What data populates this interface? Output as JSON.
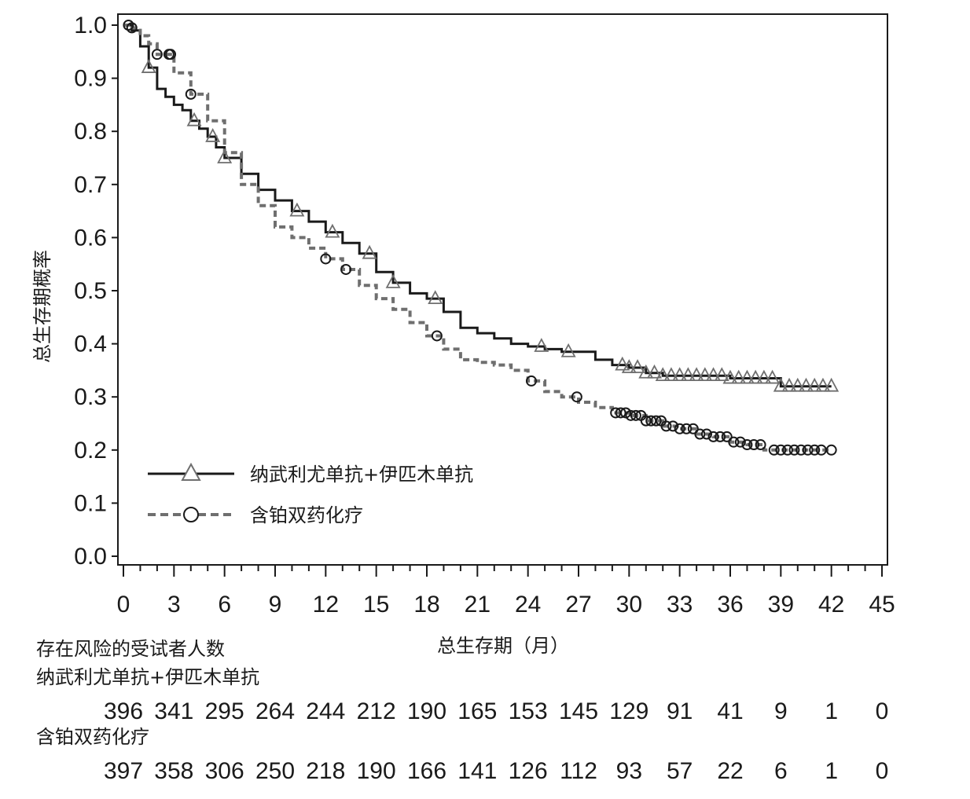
{
  "chart_data": {
    "type": "line",
    "subtype": "kaplan-meier",
    "xlabel": "总生存期（月）",
    "ylabel": "总生存期概率",
    "xlim": [
      0,
      45
    ],
    "ylim": [
      0.0,
      1.0
    ],
    "xticks": [
      "0",
      "3",
      "6",
      "9",
      "12",
      "15",
      "18",
      "21",
      "24",
      "27",
      "30",
      "33",
      "36",
      "39",
      "42",
      "45"
    ],
    "yticks": [
      "0.0",
      "0.1",
      "0.2",
      "0.3",
      "0.4",
      "0.5",
      "0.6",
      "0.7",
      "0.8",
      "0.9",
      "1.0"
    ],
    "grid": false,
    "legend_position": "lower-left",
    "series": [
      {
        "name": "纳武利尤单抗+伊匹木单抗",
        "color": "#1a1a1a",
        "line_style": "solid",
        "marker": "triangle",
        "x": [
          0,
          0.5,
          1,
          1.5,
          2,
          2.5,
          3,
          3.5,
          4,
          4.5,
          5,
          5.5,
          6,
          7,
          8,
          9,
          10,
          11,
          12,
          13,
          14,
          15,
          16,
          17,
          18,
          19,
          20,
          21,
          22,
          23,
          24,
          25,
          26,
          27,
          28,
          29,
          30,
          31,
          32,
          33,
          34,
          35,
          36,
          37,
          38,
          39,
          40,
          41,
          42
        ],
        "y": [
          1.0,
          0.99,
          0.96,
          0.92,
          0.88,
          0.865,
          0.85,
          0.84,
          0.82,
          0.805,
          0.79,
          0.77,
          0.75,
          0.72,
          0.69,
          0.67,
          0.65,
          0.63,
          0.61,
          0.59,
          0.57,
          0.535,
          0.515,
          0.495,
          0.485,
          0.46,
          0.43,
          0.42,
          0.41,
          0.4,
          0.395,
          0.39,
          0.385,
          0.385,
          0.37,
          0.36,
          0.355,
          0.345,
          0.34,
          0.34,
          0.34,
          0.34,
          0.335,
          0.335,
          0.335,
          0.32,
          0.32,
          0.32,
          0.32
        ],
        "censor_x": [
          1.5,
          4.2,
          5.3,
          6,
          10.3,
          12.4,
          14.6,
          16,
          18.5,
          24.8,
          26.4,
          29.6,
          30,
          30.5,
          31,
          31.5,
          32,
          32.5,
          33,
          33.5,
          34,
          34.5,
          35,
          35.5,
          36,
          36.5,
          37,
          37.5,
          38,
          38.5,
          39,
          39.5,
          40,
          40.5,
          41,
          41.5,
          42
        ]
      },
      {
        "name": "含铂双药化疗",
        "color": "#6f6f6f",
        "line_style": "dashed",
        "marker": "circle",
        "x": [
          0,
          0.5,
          1,
          1.5,
          2,
          3,
          4,
          5,
          6,
          7,
          8,
          9,
          10,
          11,
          12,
          13,
          14,
          15,
          16,
          17,
          18,
          19,
          20,
          21,
          22,
          23,
          24,
          25,
          26,
          27,
          28,
          29,
          30,
          31,
          32,
          33,
          34,
          35,
          36,
          37,
          38,
          39,
          40,
          41,
          42
        ],
        "y": [
          1.0,
          0.995,
          0.98,
          0.965,
          0.945,
          0.91,
          0.87,
          0.82,
          0.76,
          0.7,
          0.66,
          0.62,
          0.6,
          0.58,
          0.56,
          0.54,
          0.51,
          0.485,
          0.465,
          0.44,
          0.415,
          0.39,
          0.37,
          0.365,
          0.36,
          0.35,
          0.33,
          0.31,
          0.3,
          0.29,
          0.28,
          0.27,
          0.265,
          0.255,
          0.245,
          0.24,
          0.23,
          0.225,
          0.215,
          0.21,
          0.2,
          0.2,
          0.2,
          0.2,
          0.2
        ],
        "censor_x": [
          0.3,
          0.5,
          2,
          2.7,
          2.8,
          4,
          12,
          13.2,
          18.6,
          24.2,
          26.9,
          29.2,
          29.5,
          29.8,
          30.1,
          30.4,
          30.7,
          31.0,
          31.3,
          31.6,
          31.9,
          32.2,
          32.6,
          33.0,
          33.4,
          33.8,
          34.2,
          34.6,
          35.0,
          35.4,
          35.8,
          36.2,
          36.6,
          37.0,
          37.4,
          37.8,
          38.6,
          39.0,
          39.4,
          39.8,
          40.2,
          40.6,
          41.0,
          41.4,
          42.0
        ]
      }
    ]
  },
  "risk_table": {
    "title": "存在风险的受试者人数",
    "rows": [
      {
        "label": "纳武利尤单抗+伊匹木单抗",
        "values": [
          "396",
          "341",
          "295",
          "264",
          "244",
          "212",
          "190",
          "165",
          "153",
          "145",
          "129",
          "91",
          "41",
          "9",
          "1",
          "0"
        ]
      },
      {
        "label": "含铂双药化疗",
        "values": [
          "397",
          "358",
          "306",
          "250",
          "218",
          "190",
          "166",
          "141",
          "126",
          "112",
          "93",
          "57",
          "22",
          "6",
          "1",
          "0"
        ]
      }
    ]
  }
}
